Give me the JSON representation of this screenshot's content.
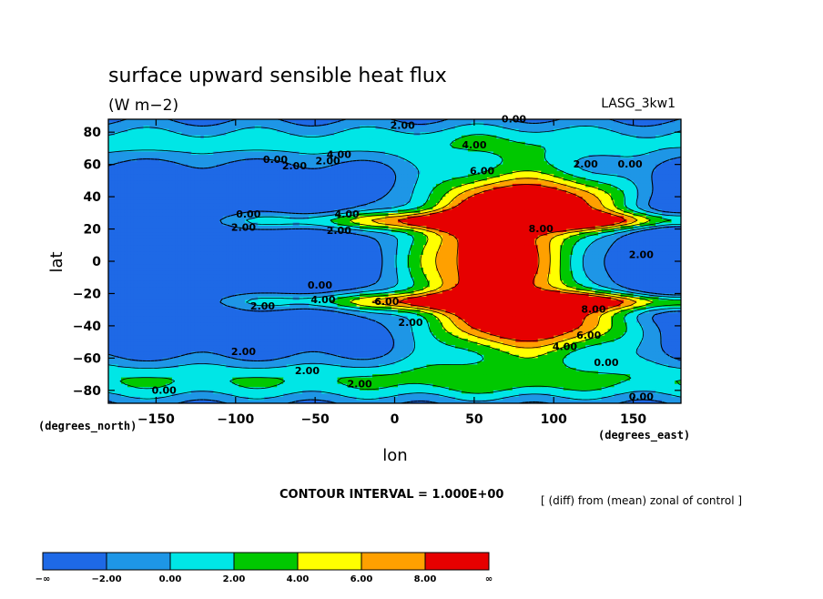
{
  "chart_data": {
    "type": "heatmap",
    "title": "surface upward sensible heat flux",
    "units": "(W m−2)",
    "run_label": "LASG_3kw1",
    "xlabel": "lon",
    "ylabel": "lat",
    "x_units": "(degrees_east)",
    "y_units": "(degrees_north)",
    "xlim": [
      -180,
      180
    ],
    "ylim": [
      -88,
      88
    ],
    "x_ticks": [
      -150,
      -100,
      -50,
      0,
      50,
      100,
      150
    ],
    "y_ticks": [
      80,
      60,
      40,
      20,
      0,
      -20,
      -40,
      -60,
      -80
    ],
    "x_tick_labels": [
      "−150",
      "−100",
      "−50",
      "0",
      "50",
      "100",
      "150"
    ],
    "y_tick_labels": [
      "80",
      "60",
      "40",
      "20",
      "0",
      "−20",
      "−40",
      "−60",
      "−80"
    ],
    "contour_interval": "CONTOUR INTERVAL = 1.000E+00",
    "note": "[ (diff) from (mean) zonal of control ]",
    "levels": [
      -2,
      0,
      2,
      4,
      6,
      8
    ],
    "colorbar": {
      "labels": [
        "−∞",
        "−2.00",
        "0.00",
        "2.00",
        "4.00",
        "6.00",
        "8.00",
        "∞"
      ],
      "colors": [
        "#1e69e6",
        "#1e96e6",
        "#00e6e6",
        "#00c800",
        "#ffff00",
        "#ffa000",
        "#e60000"
      ]
    },
    "contour_labels": [
      {
        "text": "2.00",
        "lon": 5,
        "lat": 82
      },
      {
        "text": "0.00",
        "lon": 75,
        "lat": 86
      },
      {
        "text": "4.00",
        "lon": 50,
        "lat": 70
      },
      {
        "text": "4.00",
        "lon": -35,
        "lat": 64
      },
      {
        "text": "2.00",
        "lon": -42,
        "lat": 60
      },
      {
        "text": "0.00",
        "lon": -75,
        "lat": 61
      },
      {
        "text": "2.00",
        "lon": -63,
        "lat": 57
      },
      {
        "text": "6.00",
        "lon": 55,
        "lat": 54
      },
      {
        "text": "2.00",
        "lon": 120,
        "lat": 58
      },
      {
        "text": "0.00",
        "lon": 148,
        "lat": 58
      },
      {
        "text": "0.00",
        "lon": -92,
        "lat": 27
      },
      {
        "text": "2.00",
        "lon": -95,
        "lat": 19
      },
      {
        "text": "4.00",
        "lon": -30,
        "lat": 27
      },
      {
        "text": "2.00",
        "lon": -35,
        "lat": 17
      },
      {
        "text": "8.00",
        "lon": 92,
        "lat": 18
      },
      {
        "text": "2.00",
        "lon": 155,
        "lat": 2
      },
      {
        "text": "0.00",
        "lon": -47,
        "lat": -17
      },
      {
        "text": "2.00",
        "lon": -83,
        "lat": -30
      },
      {
        "text": "6.00",
        "lon": -5,
        "lat": -27
      },
      {
        "text": "4.00",
        "lon": -45,
        "lat": -26
      },
      {
        "text": "2.00",
        "lon": 10,
        "lat": -40
      },
      {
        "text": "8.00",
        "lon": 125,
        "lat": -32
      },
      {
        "text": "6.00",
        "lon": 122,
        "lat": -48
      },
      {
        "text": "4.00",
        "lon": 107,
        "lat": -55
      },
      {
        "text": "2.00",
        "lon": -95,
        "lat": -58
      },
      {
        "text": "2.00",
        "lon": -55,
        "lat": -70
      },
      {
        "text": "2.00",
        "lon": -22,
        "lat": -78
      },
      {
        "text": "0.00",
        "lon": 133,
        "lat": -65
      },
      {
        "text": "0.00",
        "lon": -145,
        "lat": -82
      },
      {
        "text": "0.00",
        "lon": 155,
        "lat": -86
      }
    ]
  }
}
